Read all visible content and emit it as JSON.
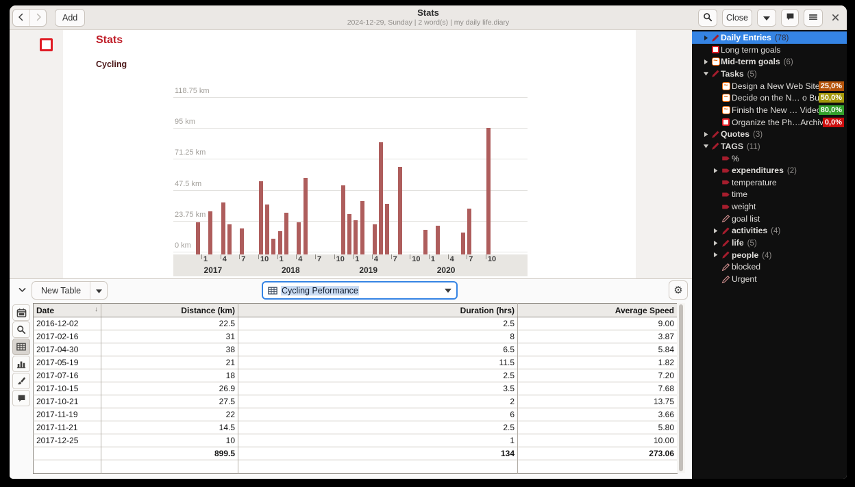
{
  "window": {
    "title": "Stats",
    "subtitle": "2024-12-29, Sunday | 2 word(s) | my daily life.diary"
  },
  "headerbar": {
    "add_label": "Add",
    "close_label": "Close",
    "icons": [
      "back-icon",
      "forward-icon",
      "search-icon",
      "caret-down-icon",
      "comment-icon",
      "menu-icon",
      "window-close-icon"
    ]
  },
  "document": {
    "title": "Stats",
    "subtitle": "Cycling",
    "margin_icon": "todo-checkbox-icon"
  },
  "chart_data": {
    "type": "bar",
    "title": "Cycling",
    "ylabel": "Distance",
    "unit": "km",
    "bar_color": "#ae5d5c",
    "grid": true,
    "ylim": [
      0,
      130
    ],
    "y_ticks": [
      {
        "value": 0,
        "label": "0 km"
      },
      {
        "value": 23.75,
        "label": "23.75 km"
      },
      {
        "value": 47.5,
        "label": "47.5 km"
      },
      {
        "value": 71.25,
        "label": "71.25 km"
      },
      {
        "value": 95,
        "label": "95 km"
      },
      {
        "value": 118.75,
        "label": "118.75 km"
      }
    ],
    "x_ticks_months": [
      1,
      4,
      7,
      10
    ],
    "years": [
      "2017",
      "2018",
      "2019",
      "2020"
    ],
    "series": [
      {
        "name": "Distance (km)",
        "points": [
          [
            "2016-12",
            22.5
          ],
          [
            "2017-02",
            31
          ],
          [
            "2017-04",
            38
          ],
          [
            "2017-05",
            21
          ],
          [
            "2017-07",
            18
          ],
          [
            "2017-10",
            54.4
          ],
          [
            "2017-11",
            36.5
          ],
          [
            "2017-12",
            10
          ],
          [
            "2018-01",
            16
          ],
          [
            "2018-02",
            30
          ],
          [
            "2018-04",
            22.5
          ],
          [
            "2018-05",
            57
          ],
          [
            "2018-11",
            51
          ],
          [
            "2018-12",
            29
          ],
          [
            "2019-01",
            24
          ],
          [
            "2019-02",
            39
          ],
          [
            "2019-04",
            21
          ],
          [
            "2019-05",
            84
          ],
          [
            "2019-06",
            37
          ],
          [
            "2019-08",
            65
          ],
          [
            "2019-12",
            17
          ],
          [
            "2020-02",
            20
          ],
          [
            "2020-06",
            15
          ],
          [
            "2020-07",
            33
          ],
          [
            "2020-10",
            95
          ]
        ]
      }
    ]
  },
  "panel": {
    "new_table_label": "New Table",
    "table_selector": {
      "value": "Cycling Peformance",
      "icon": "table-grid-icon"
    },
    "settings_icon": "gear-icon",
    "collapse_icon": "chevron-down-icon",
    "view_buttons": [
      {
        "name": "calendar",
        "icon": "calendar-icon",
        "selected": false
      },
      {
        "name": "search",
        "icon": "search-icon",
        "selected": false
      },
      {
        "name": "table",
        "icon": "table-icon",
        "selected": true
      },
      {
        "name": "chart",
        "icon": "chart-icon",
        "selected": false
      },
      {
        "name": "paint",
        "icon": "paint-icon",
        "selected": false
      },
      {
        "name": "comment",
        "icon": "comment-icon",
        "selected": false
      }
    ]
  },
  "table": {
    "columns": [
      "Date",
      "Distance (km)",
      "Duration (hrs)",
      "Average Speed"
    ],
    "sort_column": "Date",
    "sort_direction": "down",
    "rows": [
      [
        "2016-12-02",
        "22.5",
        "2.5",
        "9.00"
      ],
      [
        "2017-02-16",
        "31",
        "8",
        "3.87"
      ],
      [
        "2017-04-30",
        "38",
        "6.5",
        "5.84"
      ],
      [
        "2017-05-19",
        "21",
        "11.5",
        "1.82"
      ],
      [
        "2017-07-16",
        "18",
        "2.5",
        "7.20"
      ],
      [
        "2017-10-15",
        "26.9",
        "3.5",
        "7.68"
      ],
      [
        "2017-10-21",
        "27.5",
        "2",
        "13.75"
      ],
      [
        "2017-11-19",
        "22",
        "6",
        "3.66"
      ],
      [
        "2017-11-21",
        "14.5",
        "2.5",
        "5.80"
      ],
      [
        "2017-12-25",
        "10",
        "1",
        "10.00"
      ]
    ],
    "totals": [
      "",
      "899.5",
      "134",
      "273.06"
    ]
  },
  "sidebar": {
    "items": [
      {
        "label": "Daily Entries",
        "count": "(78)",
        "icon": "pencil",
        "expander": "collapsed",
        "level": 0,
        "bold": true,
        "selected": true
      },
      {
        "label": "Long term goals",
        "icon": "todo-box",
        "level": 0
      },
      {
        "label": "Mid-term goals",
        "count": "(6)",
        "icon": "progress-box",
        "expander": "collapsed",
        "level": 0,
        "bold": true
      },
      {
        "label": "Tasks",
        "count": "(5)",
        "icon": "pencil",
        "expander": "expanded",
        "level": 0,
        "bold": true
      },
      {
        "label": "Design a New Web Site",
        "icon": "progress-box",
        "level": 1,
        "badge": {
          "text": "25,0%",
          "color": "#b5540a"
        }
      },
      {
        "label": "Decide on the N… o Buy",
        "icon": "progress-box",
        "level": 1,
        "badge": {
          "text": "50,0%",
          "color": "#a3970b"
        }
      },
      {
        "label": "Finish the New … Video",
        "icon": "progress-box",
        "level": 1,
        "badge": {
          "text": "80,0%",
          "color": "#33a02c"
        }
      },
      {
        "label": "Organize the Ph…Archive",
        "icon": "todo-box",
        "level": 1,
        "badge": {
          "text": "0,0%",
          "color": "#cc0d0d"
        }
      },
      {
        "label": "Quotes",
        "count": "(3)",
        "icon": "pencil",
        "expander": "collapsed",
        "level": 0,
        "bold": true
      },
      {
        "label": "TAGS",
        "count": "(11)",
        "icon": "pencil",
        "expander": "expanded",
        "level": 0,
        "bold": true
      },
      {
        "label": "%",
        "icon": "tag",
        "level": 1
      },
      {
        "label": "expenditures",
        "count": "(2)",
        "icon": "tag",
        "expander": "collapsed",
        "level": 1,
        "bold": true
      },
      {
        "label": "temperature",
        "icon": "tag",
        "level": 1
      },
      {
        "label": "time",
        "icon": "tag",
        "level": 1
      },
      {
        "label": "weight",
        "icon": "tag",
        "level": 1
      },
      {
        "label": "goal list",
        "icon": "pencil-outline",
        "level": 1
      },
      {
        "label": "activities",
        "count": "(4)",
        "icon": "pencil",
        "expander": "collapsed",
        "level": 1,
        "bold": true
      },
      {
        "label": "life",
        "count": "(5)",
        "icon": "pencil",
        "expander": "collapsed",
        "level": 1,
        "bold": true
      },
      {
        "label": "people",
        "count": "(4)",
        "icon": "pencil",
        "expander": "collapsed",
        "level": 1,
        "bold": true
      },
      {
        "label": "blocked",
        "icon": "pencil-outline",
        "level": 1
      },
      {
        "label": "Urgent",
        "icon": "pencil-outline",
        "level": 1
      }
    ]
  },
  "colors": {
    "accent": "#3584e4",
    "bar": "#ae5d5c",
    "heading_red": "#bf1d28",
    "pencil_red": "#a51d2d",
    "todo_red": "#e01b24",
    "progress_orange": "#e66100",
    "sidebar_bg": "#0f0f0f"
  }
}
